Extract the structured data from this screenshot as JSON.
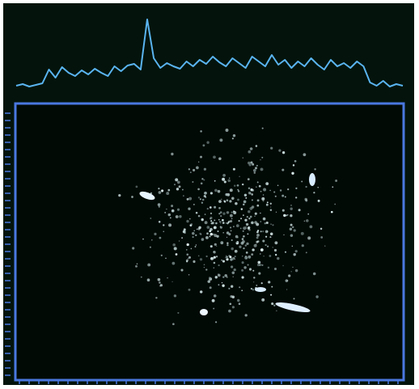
{
  "trace": {
    "values": [
      6,
      8,
      5,
      7,
      9,
      26,
      16,
      29,
      22,
      18,
      25,
      20,
      27,
      22,
      18,
      30,
      24,
      31,
      33,
      26,
      88,
      40,
      28,
      34,
      30,
      27,
      36,
      30,
      38,
      33,
      42,
      35,
      30,
      40,
      34,
      28,
      42,
      36,
      30,
      44,
      32,
      38,
      28,
      36,
      30,
      40,
      32,
      26,
      38,
      30,
      34,
      28,
      36,
      30,
      10,
      6,
      12,
      5,
      8,
      6
    ]
  }
}
